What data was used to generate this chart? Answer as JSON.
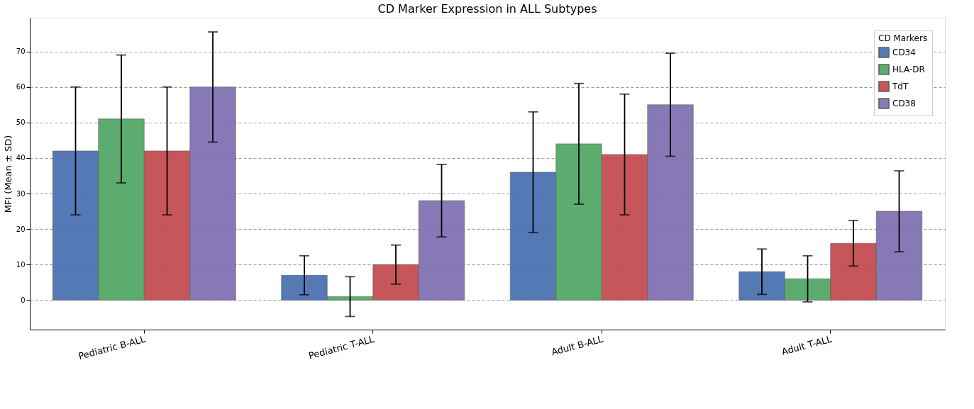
{
  "chart_data": {
    "type": "bar",
    "title": "CD Marker Expression in ALL Subtypes",
    "ylabel": "MFI (Mean ± SD)",
    "legend_title": "CD Markers",
    "categories": [
      "Pediatric B-ALL",
      "Pediatric T-ALL",
      "Adult B-ALL",
      "Adult T-ALL"
    ],
    "series": [
      {
        "name": "CD34",
        "color": "#4c72b0",
        "values": [
          42,
          7,
          36,
          8
        ],
        "errors": [
          18,
          5.5,
          17,
          6.4
        ]
      },
      {
        "name": "HLA-DR",
        "color": "#55a868",
        "values": [
          51,
          1,
          44,
          6
        ],
        "errors": [
          18,
          5.6,
          17,
          6.5
        ]
      },
      {
        "name": "TdT",
        "color": "#c44e52",
        "values": [
          42,
          10,
          41,
          16
        ],
        "errors": [
          18,
          5.5,
          17,
          6.4
        ]
      },
      {
        "name": "CD38",
        "color": "#8172b2",
        "values": [
          60,
          28,
          55,
          25
        ],
        "errors": [
          15.5,
          10.2,
          14.5,
          11.4
        ]
      }
    ],
    "ylim": [
      -8.3,
      79.5
    ],
    "yticks": [
      0,
      10,
      20,
      30,
      40,
      50,
      60,
      70
    ],
    "grid": "y",
    "legend": "top right"
  }
}
